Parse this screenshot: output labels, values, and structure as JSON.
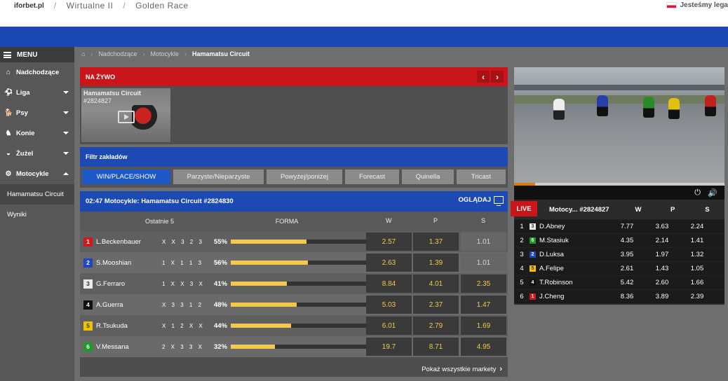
{
  "top": {
    "brand": "iforbet.pl",
    "crumbs": [
      "Wirtualne II",
      "Golden Race"
    ],
    "lang_text": "Jesteśmy lega"
  },
  "sidebar": {
    "menu_label": "MENU",
    "items": [
      {
        "label": "Nadchodzące",
        "icon": "home-icon"
      },
      {
        "label": "Liga",
        "icon": "football-icon"
      },
      {
        "label": "Psy",
        "icon": "dog-icon"
      },
      {
        "label": "Konie",
        "icon": "horse-icon"
      },
      {
        "label": "Żużel",
        "icon": "speedway-icon"
      },
      {
        "label": "Motocykle",
        "icon": "motorcycle-icon"
      }
    ],
    "sub_items": [
      "Hamamatsu Circuit",
      "Wyniki"
    ]
  },
  "breadcrumb": [
    "Nadchodzące",
    "Motocykle",
    "Hamamatsu Circuit"
  ],
  "live": {
    "title": "NA ŻYWO",
    "thumb_title": "Hamamatsu Circuit",
    "thumb_id": "#2824827"
  },
  "filter": {
    "title": "Filtr zakładów",
    "tabs": [
      "WIN/PLACE/SHOW",
      "Parzyste/Nieparzyste",
      "Powyżej/poniżej",
      "Forecast",
      "Quinella",
      "Tricast"
    ]
  },
  "race": {
    "header": "02:47 Motocykle: Hamamatsu Circuit  #2824830",
    "watch_label": "OGLĄDAJ",
    "col_last5": "Ostatnie 5",
    "col_form": "FORMA",
    "col_w": "W",
    "col_p": "P",
    "col_s": "S",
    "show_all": "Pokaż wszystkie markety",
    "runners": [
      {
        "num": "1",
        "color": "#d0181d",
        "text_color": "#fff",
        "name": "L.Beckenbauer",
        "last5": "X X 3 2 3",
        "pct_label": "55%",
        "pct": 55,
        "w": "2.57",
        "p": "1.37",
        "s": "1.01",
        "s_grey": true
      },
      {
        "num": "2",
        "color": "#1f47c2",
        "text_color": "#fff",
        "name": "S.Mooshian",
        "last5": "1 X 1 1 3",
        "pct_label": "56%",
        "pct": 56,
        "w": "2.63",
        "p": "1.39",
        "s": "1.01",
        "s_grey": true
      },
      {
        "num": "3",
        "color": "#e9e9e9",
        "text_color": "#333",
        "name": "G.Ferraro",
        "last5": "1 X X 3 X",
        "pct_label": "41%",
        "pct": 41,
        "w": "8.84",
        "p": "4.01",
        "s": "2.35",
        "s_grey": false
      },
      {
        "num": "4",
        "color": "#111",
        "text_color": "#fff",
        "name": "A.Guerra",
        "last5": "X 3 3 1 2",
        "pct_label": "48%",
        "pct": 48,
        "w": "5.03",
        "p": "2.37",
        "s": "1.47",
        "s_grey": false
      },
      {
        "num": "5",
        "color": "#f2c200",
        "text_color": "#333",
        "name": "R.Tsukuda",
        "last5": "X 1 2 X X",
        "pct_label": "44%",
        "pct": 44,
        "w": "6.01",
        "p": "2.79",
        "s": "1.69",
        "s_grey": false
      },
      {
        "num": "6",
        "color": "#1e9a2b",
        "text_color": "#fff",
        "name": "V.Messana",
        "last5": "2 X 3 3 X",
        "pct_label": "32%",
        "pct": 32,
        "w": "19.7",
        "p": "8.71",
        "s": "4.95",
        "s_grey": false
      }
    ]
  },
  "video": {
    "progress": 0.1
  },
  "live_table": {
    "badge": "LIVE",
    "title": "Motocy...",
    "id": "#2824827",
    "col_w": "W",
    "col_p": "P",
    "col_s": "S",
    "rows": [
      {
        "pos": "1",
        "num": "3",
        "color": "#e9e9e9",
        "text_color": "#333",
        "name": "D.Abney",
        "w": "7.77",
        "p": "3.63",
        "s": "2.24"
      },
      {
        "pos": "2",
        "num": "6",
        "color": "#1e9a2b",
        "text_color": "#fff",
        "name": "M.Stasiuk",
        "w": "4.35",
        "p": "2.14",
        "s": "1.41"
      },
      {
        "pos": "3",
        "num": "2",
        "color": "#1f47c2",
        "text_color": "#fff",
        "name": "D.Luksa",
        "w": "3.95",
        "p": "1.97",
        "s": "1.32"
      },
      {
        "pos": "4",
        "num": "5",
        "color": "#f2c200",
        "text_color": "#333",
        "name": "A.Felipe",
        "w": "2.61",
        "p": "1.43",
        "s": "1.05"
      },
      {
        "pos": "5",
        "num": "4",
        "color": "#111",
        "text_color": "#fff",
        "name": "T.Robinson",
        "w": "5.42",
        "p": "2.60",
        "s": "1.66"
      },
      {
        "pos": "6",
        "num": "1",
        "color": "#d0181d",
        "text_color": "#fff",
        "name": "J.Cheng",
        "w": "8.36",
        "p": "3.89",
        "s": "2.39"
      }
    ]
  }
}
